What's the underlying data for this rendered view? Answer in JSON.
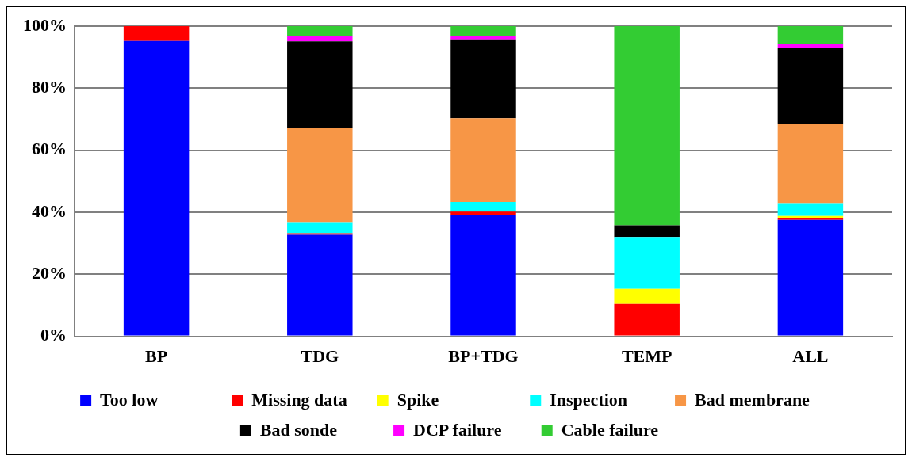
{
  "chart_data": {
    "type": "bar",
    "stacked": true,
    "categories": [
      "BP",
      "TDG",
      "BP+TDG",
      "TEMP",
      "ALL"
    ],
    "series": [
      {
        "name": "Too low",
        "color": "#0000ff",
        "values": [
          95.2,
          32.7,
          39.0,
          0,
          37.5
        ]
      },
      {
        "name": "Missing data",
        "color": "#ff0000",
        "values": [
          4.8,
          0.5,
          1.2,
          10.4,
          0.7
        ]
      },
      {
        "name": "Spike",
        "color": "#ffff00",
        "values": [
          0,
          0,
          0,
          4.9,
          0.6
        ]
      },
      {
        "name": "Inspection",
        "color": "#00ffff",
        "values": [
          0,
          3.6,
          3.1,
          16.7,
          4.1
        ]
      },
      {
        "name": "Bad membrane",
        "color": "#f79646",
        "values": [
          0,
          30.3,
          27.0,
          0,
          25.7
        ]
      },
      {
        "name": "Bad sonde",
        "color": "#000000",
        "values": [
          0,
          28.0,
          25.4,
          3.8,
          24.3
        ]
      },
      {
        "name": "DCP failure",
        "color": "#ff00ff",
        "values": [
          0,
          1.6,
          1.1,
          0,
          1.2
        ]
      },
      {
        "name": "Cable failure",
        "color": "#33cc33",
        "values": [
          0,
          3.3,
          3.2,
          64.2,
          5.9
        ]
      }
    ],
    "ylim": [
      0,
      100
    ],
    "yticks": [
      {
        "value": 0,
        "label": "0%"
      },
      {
        "value": 20,
        "label": "20%"
      },
      {
        "value": 40,
        "label": "40%"
      },
      {
        "value": 60,
        "label": "60%"
      },
      {
        "value": 80,
        "label": "80%"
      },
      {
        "value": 100,
        "label": "100%"
      }
    ],
    "grid": "y",
    "legend": "bottom"
  }
}
